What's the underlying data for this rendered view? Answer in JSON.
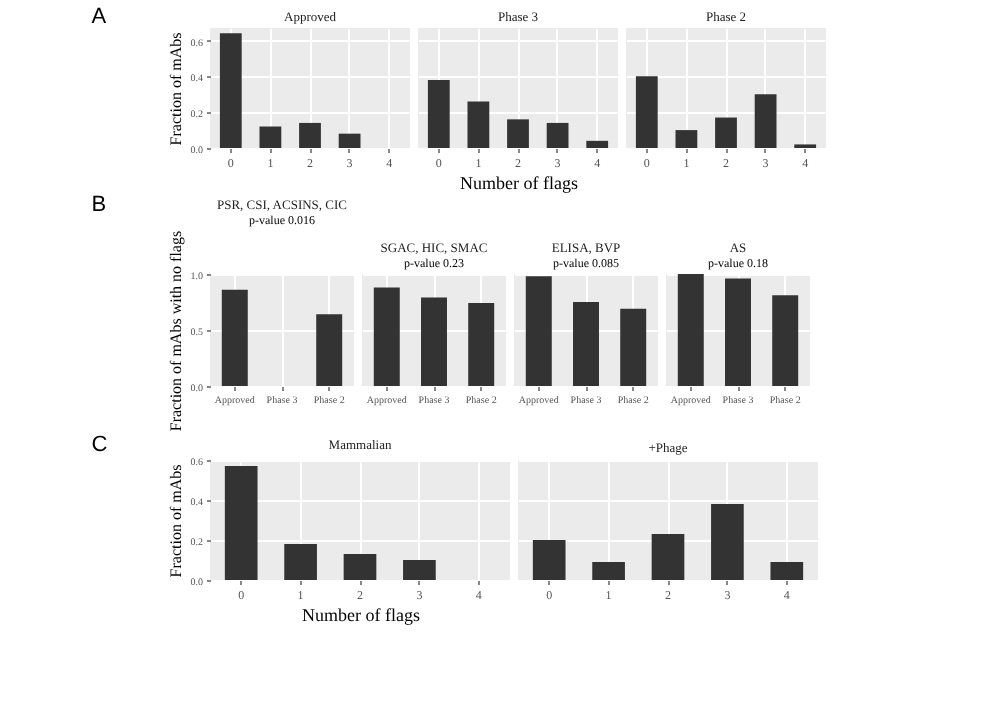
{
  "chart_data": [
    {
      "type": "bar",
      "title": "Approved",
      "ylabel": "Fraction of mAbs",
      "annotations": [
        "A"
      ],
      "categories": [
        "0",
        "1",
        "2",
        "3",
        "4"
      ],
      "values": [
        0.64,
        0.12,
        0.14,
        0.08,
        0
      ],
      "color": "#333333",
      "ylim": [
        0,
        0.67
      ],
      "yticks": [
        {
          "value": 0,
          "label": "0.0"
        },
        {
          "value": 0.2,
          "label": "0.2"
        },
        {
          "value": 0.4,
          "label": "0.4"
        },
        {
          "value": 0.6,
          "label": "0.6"
        }
      ],
      "grid": true
    },
    {
      "type": "bar",
      "title": "Phase 3",
      "xlabel": "Number of flags",
      "categories": [
        "0",
        "1",
        "2",
        "3",
        "4"
      ],
      "values": [
        0.38,
        0.26,
        0.16,
        0.14,
        0.04
      ],
      "color": "#333333",
      "ylim": [
        0,
        0.67
      ],
      "yticks": [
        {
          "value": 0,
          "label": null
        },
        {
          "value": 0.2,
          "label": null
        },
        {
          "value": 0.4,
          "label": null
        },
        {
          "value": 0.6,
          "label": null
        }
      ],
      "grid": true,
      "tick_labels": "x"
    },
    {
      "type": "bar",
      "title": "Phase 2",
      "categories": [
        "0",
        "1",
        "2",
        "3",
        "4"
      ],
      "values": [
        0.4,
        0.1,
        0.17,
        0.3,
        0.02
      ],
      "color": "#333333",
      "ylim": [
        0,
        0.67
      ],
      "yticks": [
        {
          "value": 0,
          "label": null
        },
        {
          "value": 0.2,
          "label": null
        },
        {
          "value": 0.4,
          "label": null
        },
        {
          "value": 0.6,
          "label": null
        }
      ],
      "grid": true,
      "tick_labels": "x"
    },
    {
      "type": "bar",
      "title": "PSR, CSI, ACSINS, CIC",
      "ylabel": "Fraction of mAbs with no flags",
      "annotations": [
        "B",
        "p-value 0.016"
      ],
      "categories": [
        "Approved",
        "Phase 3",
        "Phase 2"
      ],
      "values": [
        0.86,
        null,
        0.64
      ],
      "color": "#333333",
      "ylim": [
        0,
        1
      ],
      "yticks": [
        {
          "value": 0,
          "label": "0.0"
        },
        {
          "value": 0.5,
          "label": "0.5"
        },
        {
          "value": 1,
          "label": "1.0"
        }
      ],
      "grid": true
    },
    {
      "type": "bar",
      "title": "SGAC, HIC, SMAC",
      "annotations": [
        "p-value 0.23"
      ],
      "categories": [
        "Approved",
        "Phase 3",
        "Phase 2"
      ],
      "values": [
        0.88,
        0.79,
        0.74
      ],
      "color": "#333333",
      "ylim": [
        0,
        1
      ],
      "yticks": [
        {
          "value": 0,
          "label": null
        },
        {
          "value": 0.5,
          "label": null
        },
        {
          "value": 1,
          "label": null
        }
      ],
      "grid": true,
      "tick_labels": "x"
    },
    {
      "type": "bar",
      "title": "ELISA, BVP",
      "annotations": [
        "p-value 0.085"
      ],
      "categories": [
        "Approved",
        "Phase 3",
        "Phase 2"
      ],
      "values": [
        0.98,
        0.75,
        0.69
      ],
      "color": "#333333",
      "ylim": [
        0,
        1
      ],
      "yticks": [
        {
          "value": 0,
          "label": null
        },
        {
          "value": 0.5,
          "label": null
        },
        {
          "value": 1,
          "label": null
        }
      ],
      "grid": true,
      "tick_labels": "x"
    },
    {
      "type": "bar",
      "title": "AS",
      "annotations": [
        "p-value 0.18"
      ],
      "categories": [
        "Approved",
        "Phase 3",
        "Phase 2"
      ],
      "values": [
        1.0,
        0.96,
        0.81
      ],
      "color": "#333333",
      "ylim": [
        0,
        1
      ],
      "yticks": [
        {
          "value": 0,
          "label": null
        },
        {
          "value": 0.5,
          "label": null
        },
        {
          "value": 1,
          "label": null
        }
      ],
      "grid": true,
      "tick_labels": "x"
    },
    {
      "type": "bar",
      "title": "Mammalian",
      "ylabel": "Fraction of mAbs",
      "xlabel": "Number of flags",
      "annotations": [
        "C"
      ],
      "categories": [
        "0",
        "1",
        "2",
        "3",
        "4"
      ],
      "values": [
        0.57,
        0.18,
        0.13,
        0.1,
        0
      ],
      "color": "#333333",
      "ylim": [
        0,
        0.6
      ],
      "yticks": [
        {
          "value": 0,
          "label": "0.0"
        },
        {
          "value": 0.2,
          "label": "0.2"
        },
        {
          "value": 0.4,
          "label": "0.4"
        },
        {
          "value": 0.6,
          "label": "0.6"
        }
      ],
      "grid": true
    },
    {
      "type": "bar",
      "title": "+Phage",
      "categories": [
        "0",
        "1",
        "2",
        "3",
        "4"
      ],
      "values": [
        0.2,
        0.09,
        0.23,
        0.38,
        0.09
      ],
      "color": "#333333",
      "ylim": [
        0,
        0.6
      ],
      "yticks": [
        {
          "value": 0,
          "label": null
        },
        {
          "value": 0.2,
          "label": null
        },
        {
          "value": 0.4,
          "label": null
        },
        {
          "value": 0.6,
          "label": null
        }
      ],
      "grid": true,
      "tick_labels": "x"
    }
  ]
}
